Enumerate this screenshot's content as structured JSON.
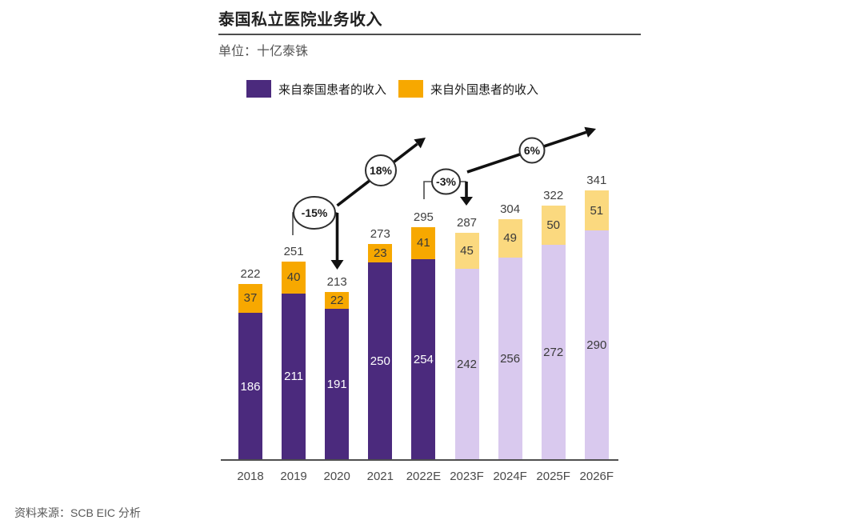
{
  "page": {
    "title": "泰国私立医院业务收入",
    "unit_label": "单位：十亿泰铢",
    "source": "资料来源：SCB EIC 分析"
  },
  "legend": [
    {
      "label": "来自泰国患者的收入",
      "color": "#4B2A7D"
    },
    {
      "label": "来自外国患者的收入",
      "color": "#F7A800"
    }
  ],
  "colors": {
    "thai_actual": "#4B2A7D",
    "thai_forecast": "#D9C9EE",
    "foreign_actual": "#F7A800",
    "foreign_forecast": "#FBD97F",
    "label_dark": "#3a3a3a",
    "label_on_purple": "#ffffff",
    "total_label": "#404040",
    "axis": "#4f4f4f"
  },
  "chart_data": {
    "type": "bar",
    "stacked": true,
    "title": "泰国私立医院业务收入",
    "ylabel": "十亿泰铢",
    "categories": [
      "2018",
      "2019",
      "2020",
      "2021",
      "2022E",
      "2023F",
      "2024F",
      "2025F",
      "2026F"
    ],
    "series": [
      {
        "name": "来自泰国患者的收入",
        "values": [
          186,
          211,
          191,
          250,
          254,
          242,
          256,
          272,
          290
        ]
      },
      {
        "name": "来自外国患者的收入",
        "values": [
          37,
          40,
          22,
          23,
          41,
          45,
          49,
          50,
          51
        ]
      }
    ],
    "totals": [
      222,
      251,
      213,
      273,
      295,
      287,
      304,
      322,
      341
    ],
    "forecast_start_index": 5,
    "annotations": [
      {
        "label": "-15%"
      },
      {
        "label": "18%"
      },
      {
        "label": "-3%"
      },
      {
        "label": "6%"
      }
    ]
  }
}
